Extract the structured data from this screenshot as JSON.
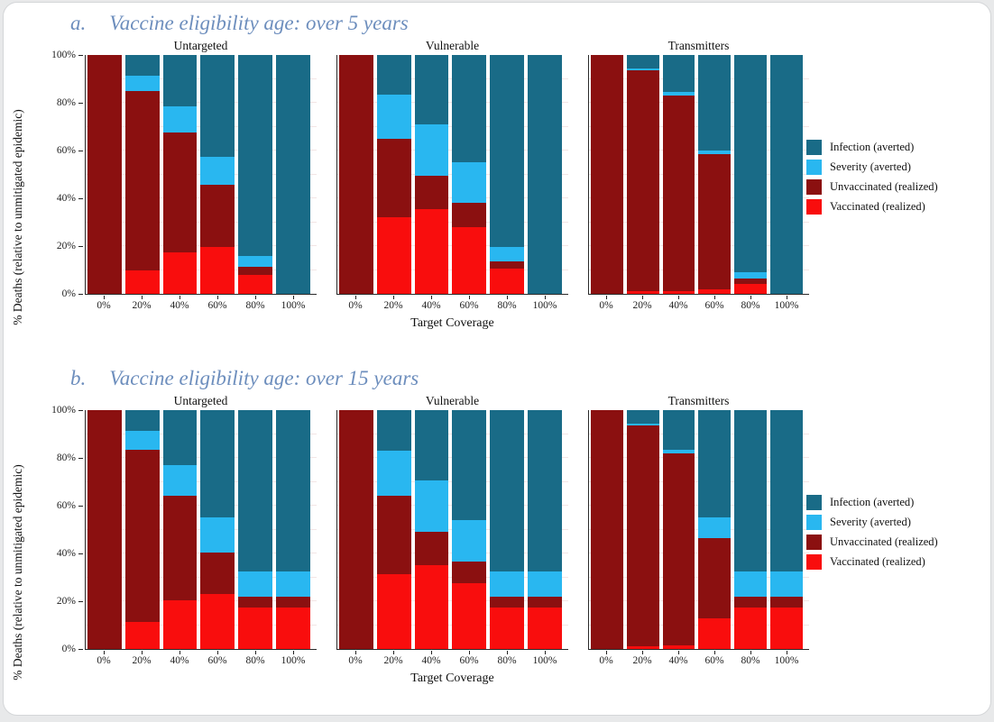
{
  "figure": {
    "panels": [
      {
        "prefix": "a.",
        "title": "Vaccine eligibility age: over 5 years"
      },
      {
        "prefix": "b.",
        "title": "Vaccine eligibility age: over 15 years"
      }
    ]
  },
  "axes": {
    "ylabel": "% Deaths (relative to unmitigated epidemic)",
    "xlabel": "Target Coverage",
    "yticks": [
      "0%",
      "20%",
      "40%",
      "60%",
      "80%",
      "100%"
    ]
  },
  "legend": {
    "entries": [
      {
        "label": "Infection (averted)",
        "color": "#196B87"
      },
      {
        "label": "Severity (averted)",
        "color": "#29B7F0"
      },
      {
        "label": "Unvaccinated (realized)",
        "color": "#8B1010"
      },
      {
        "label": "Vaccinated (realized)",
        "color": "#F90D0D"
      }
    ]
  },
  "colors": {
    "infection_averted": "#196B87",
    "severity_averted": "#29B7F0",
    "unvaccinated_realized": "#8B1010",
    "vaccinated_realized": "#F90D0D",
    "panel_title_blue": "#6D8EBD",
    "card_border": "#D4D6D8"
  },
  "chart_data": [
    {
      "type": "bar",
      "stacked": true,
      "panel": "a",
      "subplot_title": "Untargeted",
      "categories": [
        "0%",
        "20%",
        "40%",
        "60%",
        "80%",
        "100%"
      ],
      "ylim": [
        0,
        100
      ],
      "series": [
        {
          "name": "Vaccinated (realized)",
          "color": "#F90D0D",
          "values": [
            0,
            10,
            17.5,
            19.5,
            8,
            0
          ]
        },
        {
          "name": "Unvaccinated (realized)",
          "color": "#8B1010",
          "values": [
            100,
            75,
            50,
            26,
            3.5,
            0
          ]
        },
        {
          "name": "Severity (averted)",
          "color": "#29B7F0",
          "values": [
            0,
            6.5,
            11,
            12,
            4.5,
            0
          ]
        },
        {
          "name": "Infection (averted)",
          "color": "#196B87",
          "values": [
            0,
            8.5,
            21.5,
            42.5,
            84,
            100
          ]
        }
      ]
    },
    {
      "type": "bar",
      "stacked": true,
      "panel": "a",
      "subplot_title": "Vulnerable",
      "categories": [
        "0%",
        "20%",
        "40%",
        "60%",
        "80%",
        "100%"
      ],
      "ylim": [
        0,
        100
      ],
      "series": [
        {
          "name": "Vaccinated (realized)",
          "color": "#F90D0D",
          "values": [
            0,
            32,
            35.5,
            28,
            10.5,
            0
          ]
        },
        {
          "name": "Unvaccinated (realized)",
          "color": "#8B1010",
          "values": [
            100,
            33,
            14,
            10,
            3,
            0
          ]
        },
        {
          "name": "Severity (averted)",
          "color": "#29B7F0",
          "values": [
            0,
            18.5,
            21.5,
            17,
            6,
            0
          ]
        },
        {
          "name": "Infection (averted)",
          "color": "#196B87",
          "values": [
            0,
            16.5,
            29,
            45,
            80.5,
            100
          ]
        }
      ]
    },
    {
      "type": "bar",
      "stacked": true,
      "panel": "a",
      "subplot_title": "Transmitters",
      "categories": [
        "0%",
        "20%",
        "40%",
        "60%",
        "80%",
        "100%"
      ],
      "ylim": [
        0,
        100
      ],
      "series": [
        {
          "name": "Vaccinated (realized)",
          "color": "#F90D0D",
          "values": [
            0,
            1,
            1,
            2,
            4,
            0
          ]
        },
        {
          "name": "Unvaccinated (realized)",
          "color": "#8B1010",
          "values": [
            100,
            92.5,
            82,
            56.5,
            2.5,
            0
          ]
        },
        {
          "name": "Severity (averted)",
          "color": "#29B7F0",
          "values": [
            0,
            1,
            1.5,
            1.5,
            2.5,
            0
          ]
        },
        {
          "name": "Infection (averted)",
          "color": "#196B87",
          "values": [
            0,
            5.5,
            15.5,
            40,
            91,
            100
          ]
        }
      ]
    },
    {
      "type": "bar",
      "stacked": true,
      "panel": "b",
      "subplot_title": "Untargeted",
      "categories": [
        "0%",
        "20%",
        "40%",
        "60%",
        "80%",
        "100%"
      ],
      "ylim": [
        0,
        100
      ],
      "series": [
        {
          "name": "Vaccinated (realized)",
          "color": "#F90D0D",
          "values": [
            0,
            11.5,
            20.5,
            23,
            17.5,
            17.5
          ]
        },
        {
          "name": "Unvaccinated (realized)",
          "color": "#8B1010",
          "values": [
            100,
            72,
            43.5,
            17.5,
            4.5,
            4.5
          ]
        },
        {
          "name": "Severity (averted)",
          "color": "#29B7F0",
          "values": [
            0,
            8,
            13,
            14.5,
            10.5,
            10.5
          ]
        },
        {
          "name": "Infection (averted)",
          "color": "#196B87",
          "values": [
            0,
            8.5,
            23,
            45,
            67.5,
            67.5
          ]
        }
      ]
    },
    {
      "type": "bar",
      "stacked": true,
      "panel": "b",
      "subplot_title": "Vulnerable",
      "categories": [
        "0%",
        "20%",
        "40%",
        "60%",
        "80%",
        "100%"
      ],
      "ylim": [
        0,
        100
      ],
      "series": [
        {
          "name": "Vaccinated (realized)",
          "color": "#F90D0D",
          "values": [
            0,
            31.5,
            35,
            27.5,
            17.5,
            17.5
          ]
        },
        {
          "name": "Unvaccinated (realized)",
          "color": "#8B1010",
          "values": [
            100,
            32.5,
            14,
            9,
            4.5,
            4.5
          ]
        },
        {
          "name": "Severity (averted)",
          "color": "#29B7F0",
          "values": [
            0,
            19,
            21.5,
            17.5,
            10.5,
            10.5
          ]
        },
        {
          "name": "Infection (averted)",
          "color": "#196B87",
          "values": [
            0,
            17,
            29.5,
            46,
            67.5,
            67.5
          ]
        }
      ]
    },
    {
      "type": "bar",
      "stacked": true,
      "panel": "b",
      "subplot_title": "Transmitters",
      "categories": [
        "0%",
        "20%",
        "40%",
        "60%",
        "80%",
        "100%"
      ],
      "ylim": [
        0,
        100
      ],
      "series": [
        {
          "name": "Vaccinated (realized)",
          "color": "#F90D0D",
          "values": [
            0,
            1,
            1.5,
            13,
            17.5,
            17.5
          ]
        },
        {
          "name": "Unvaccinated (realized)",
          "color": "#8B1010",
          "values": [
            100,
            92.5,
            80.5,
            33.5,
            4.5,
            4.5
          ]
        },
        {
          "name": "Severity (averted)",
          "color": "#29B7F0",
          "values": [
            0,
            1,
            1.5,
            8.5,
            10.5,
            10.5
          ]
        },
        {
          "name": "Infection (averted)",
          "color": "#196B87",
          "values": [
            0,
            5.5,
            16.5,
            45,
            67.5,
            67.5
          ]
        }
      ]
    }
  ]
}
